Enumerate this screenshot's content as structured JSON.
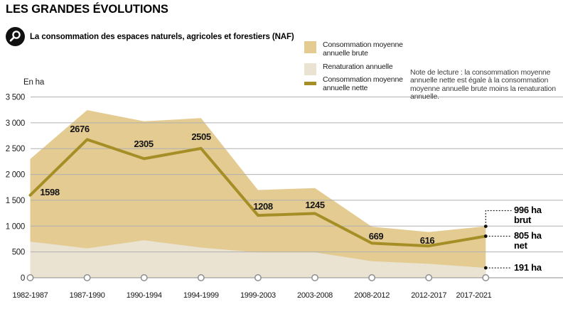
{
  "header": {
    "title": "LES GRANDES ÉVOLUTIONS",
    "subtitle": "La consommation des espaces naturels, agricoles et forestiers (NAF)"
  },
  "legend": {
    "items": [
      {
        "label": "Consommation moyenne annuelle brute",
        "swatch_type": "area",
        "color": "#e3cb92"
      },
      {
        "label": "Renaturation annuelle",
        "swatch_type": "area",
        "color": "#eae3d2"
      },
      {
        "label": "Consommation moyenne annuelle nette",
        "swatch_type": "line",
        "color": "#a68e26"
      }
    ]
  },
  "note": "Note de lecture : la consommation moyenne annuelle nette est égale à la consommation moyenne annuelle brute moins la renaturation annuelle.",
  "chart_data": {
    "type": "area",
    "title": "La consommation des espaces naturels, agricoles et forestiers (NAF)",
    "unit_label": "En ha",
    "categories": [
      "1982-1987",
      "1987-1990",
      "1990-1994",
      "1994-1999",
      "1999-2003",
      "2003-2008",
      "2008-2012",
      "2012-2017",
      "2017-2021"
    ],
    "ylim": [
      0,
      3500
    ],
    "ytick_values": [
      3500,
      3000,
      2500,
      2000,
      1500,
      1000,
      500,
      0
    ],
    "ytick_labels": [
      "3 500",
      "3 000",
      "2 500",
      "2 000",
      "1 500",
      "1 000",
      "500",
      "0"
    ],
    "grid": true,
    "legend_position": "top",
    "series": [
      {
        "name": "Consommation moyenne annuelle brute",
        "type": "area",
        "color": "#e3cb92",
        "values": [
          2298,
          3246,
          3030,
          3090,
          1698,
          1735,
          989,
          886,
          996
        ]
      },
      {
        "name": "Renaturation annuelle",
        "type": "area",
        "color": "#eae3d2",
        "values": [
          700,
          570,
          725,
          585,
          490,
          490,
          320,
          270,
          191
        ]
      },
      {
        "name": "Consommation moyenne annuelle nette",
        "type": "line",
        "color": "#a68e26",
        "values": [
          1598,
          2676,
          2305,
          2505,
          1208,
          1245,
          669,
          616,
          805
        ]
      }
    ],
    "point_labels": [
      "1598",
      "2676",
      "2305",
      "2505",
      "1208",
      "1245",
      "669",
      "616"
    ],
    "annotations": [
      {
        "value": 996,
        "label": "996 ha",
        "sublabel": "brut"
      },
      {
        "value": 805,
        "label": "805 ha",
        "sublabel": "net"
      },
      {
        "value": 191,
        "label": "191 ha",
        "sublabel": ""
      }
    ]
  }
}
